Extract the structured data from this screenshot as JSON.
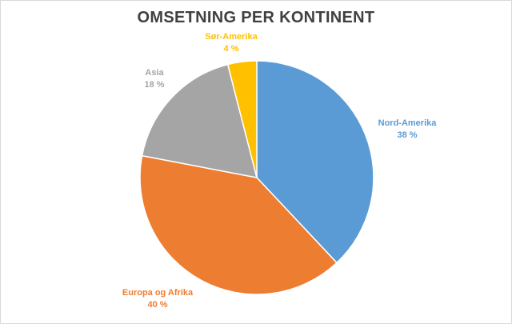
{
  "chart_data": {
    "type": "pie",
    "title": "OMSETNING PER KONTINENT",
    "slices": [
      {
        "label": "Nord-Amerika",
        "value": 38,
        "value_label": "38 %",
        "color": "#5b9bd5"
      },
      {
        "label": "Europa og Afrika",
        "value": 40,
        "value_label": "40 %",
        "color": "#ed7d31"
      },
      {
        "label": "Asia",
        "value": 18,
        "value_label": "18 %",
        "color": "#a5a5a5"
      },
      {
        "label": "Sør-Amerika",
        "value": 4,
        "value_label": "4 %",
        "color": "#ffc000"
      }
    ],
    "start_angle": "12 o'clock",
    "direction": "clockwise",
    "legend": "none"
  }
}
